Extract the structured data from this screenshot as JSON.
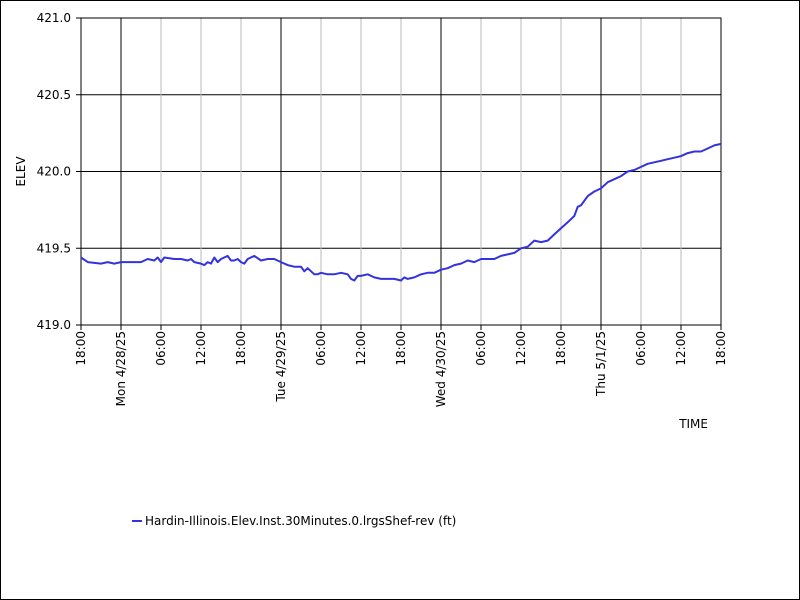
{
  "chart_data": {
    "type": "line",
    "xlabel": "TIME",
    "ylabel": "ELEV",
    "ylim": [
      419.0,
      421.0
    ],
    "y_ticks": [
      "419.0",
      "419.5",
      "420.0",
      "420.5",
      "421.0"
    ],
    "xlim": [
      "2025-04-27T18:00",
      "2025-05-01T18:00"
    ],
    "x_ticks": [
      {
        "t": "2025-04-27T18:00",
        "label": "18:00"
      },
      {
        "t": "2025-04-28T00:00",
        "label": "Mon 4/28/25",
        "major": true
      },
      {
        "t": "2025-04-28T06:00",
        "label": "06:00"
      },
      {
        "t": "2025-04-28T12:00",
        "label": "12:00"
      },
      {
        "t": "2025-04-28T18:00",
        "label": "18:00"
      },
      {
        "t": "2025-04-29T00:00",
        "label": "Tue 4/29/25",
        "major": true
      },
      {
        "t": "2025-04-29T06:00",
        "label": "06:00"
      },
      {
        "t": "2025-04-29T12:00",
        "label": "12:00"
      },
      {
        "t": "2025-04-29T18:00",
        "label": "18:00"
      },
      {
        "t": "2025-04-30T00:00",
        "label": "Wed 4/30/25",
        "major": true
      },
      {
        "t": "2025-04-30T06:00",
        "label": "06:00"
      },
      {
        "t": "2025-04-30T12:00",
        "label": "12:00"
      },
      {
        "t": "2025-04-30T18:00",
        "label": "18:00"
      },
      {
        "t": "2025-05-01T00:00",
        "label": "Thu 5/1/25",
        "major": true
      },
      {
        "t": "2025-05-01T06:00",
        "label": "06:00"
      },
      {
        "t": "2025-05-01T12:00",
        "label": "12:00"
      },
      {
        "t": "2025-05-01T18:00",
        "label": "18:00"
      }
    ],
    "grid": true,
    "legend_position": "bottom-left",
    "series": [
      {
        "name": "Hardin-Illinois.Elev.Inst.30Minutes.0.lrgsShef-rev (ft)",
        "color": "#3333dd",
        "points": [
          [
            "2025-04-27T18:00",
            419.44
          ],
          [
            "2025-04-27T19:00",
            419.41
          ],
          [
            "2025-04-27T21:00",
            419.4
          ],
          [
            "2025-04-27T22:00",
            419.41
          ],
          [
            "2025-04-27T23:00",
            419.4
          ],
          [
            "2025-04-28T00:00",
            419.41
          ],
          [
            "2025-04-28T02:00",
            419.41
          ],
          [
            "2025-04-28T03:00",
            419.41
          ],
          [
            "2025-04-28T04:00",
            419.43
          ],
          [
            "2025-04-28T05:00",
            419.42
          ],
          [
            "2025-04-28T05:30",
            419.44
          ],
          [
            "2025-04-28T06:00",
            419.41
          ],
          [
            "2025-04-28T06:30",
            419.44
          ],
          [
            "2025-04-28T08:00",
            419.43
          ],
          [
            "2025-04-28T09:00",
            419.43
          ],
          [
            "2025-04-28T10:00",
            419.42
          ],
          [
            "2025-04-28T10:30",
            419.43
          ],
          [
            "2025-04-28T11:00",
            419.41
          ],
          [
            "2025-04-28T12:00",
            419.4
          ],
          [
            "2025-04-28T12:30",
            419.39
          ],
          [
            "2025-04-28T13:00",
            419.41
          ],
          [
            "2025-04-28T13:30",
            419.4
          ],
          [
            "2025-04-28T14:00",
            419.44
          ],
          [
            "2025-04-28T14:30",
            419.41
          ],
          [
            "2025-04-28T15:00",
            419.43
          ],
          [
            "2025-04-28T16:00",
            419.45
          ],
          [
            "2025-04-28T16:30",
            419.42
          ],
          [
            "2025-04-28T17:00",
            419.42
          ],
          [
            "2025-04-28T17:30",
            419.43
          ],
          [
            "2025-04-28T18:00",
            419.41
          ],
          [
            "2025-04-28T18:30",
            419.4
          ],
          [
            "2025-04-28T19:00",
            419.43
          ],
          [
            "2025-04-28T20:00",
            419.45
          ],
          [
            "2025-04-28T21:00",
            419.42
          ],
          [
            "2025-04-28T22:00",
            419.43
          ],
          [
            "2025-04-28T23:00",
            419.43
          ],
          [
            "2025-04-29T00:00",
            419.41
          ],
          [
            "2025-04-29T01:00",
            419.39
          ],
          [
            "2025-04-29T02:00",
            419.38
          ],
          [
            "2025-04-29T03:00",
            419.38
          ],
          [
            "2025-04-29T03:30",
            419.35
          ],
          [
            "2025-04-29T04:00",
            419.37
          ],
          [
            "2025-04-29T05:00",
            419.33
          ],
          [
            "2025-04-29T05:30",
            419.33
          ],
          [
            "2025-04-29T06:00",
            419.34
          ],
          [
            "2025-04-29T07:00",
            419.33
          ],
          [
            "2025-04-29T08:00",
            419.33
          ],
          [
            "2025-04-29T09:00",
            419.34
          ],
          [
            "2025-04-29T10:00",
            419.33
          ],
          [
            "2025-04-29T10:30",
            419.3
          ],
          [
            "2025-04-29T11:00",
            419.29
          ],
          [
            "2025-04-29T11:30",
            419.32
          ],
          [
            "2025-04-29T12:00",
            419.32
          ],
          [
            "2025-04-29T13:00",
            419.33
          ],
          [
            "2025-04-29T14:00",
            419.31
          ],
          [
            "2025-04-29T15:00",
            419.3
          ],
          [
            "2025-04-29T16:00",
            419.3
          ],
          [
            "2025-04-29T17:00",
            419.3
          ],
          [
            "2025-04-29T18:00",
            419.29
          ],
          [
            "2025-04-29T18:30",
            419.31
          ],
          [
            "2025-04-29T19:00",
            419.3
          ],
          [
            "2025-04-29T20:00",
            419.31
          ],
          [
            "2025-04-29T21:00",
            419.33
          ],
          [
            "2025-04-29T22:00",
            419.34
          ],
          [
            "2025-04-29T23:00",
            419.34
          ],
          [
            "2025-04-30T00:00",
            419.36
          ],
          [
            "2025-04-30T01:00",
            419.37
          ],
          [
            "2025-04-30T02:00",
            419.39
          ],
          [
            "2025-04-30T03:00",
            419.4
          ],
          [
            "2025-04-30T04:00",
            419.42
          ],
          [
            "2025-04-30T05:00",
            419.41
          ],
          [
            "2025-04-30T06:00",
            419.43
          ],
          [
            "2025-04-30T07:00",
            419.43
          ],
          [
            "2025-04-30T08:00",
            419.43
          ],
          [
            "2025-04-30T09:00",
            419.45
          ],
          [
            "2025-04-30T10:00",
            419.46
          ],
          [
            "2025-04-30T11:00",
            419.47
          ],
          [
            "2025-04-30T12:00",
            419.5
          ],
          [
            "2025-04-30T13:00",
            419.51
          ],
          [
            "2025-04-30T14:00",
            419.55
          ],
          [
            "2025-04-30T15:00",
            419.54
          ],
          [
            "2025-04-30T16:00",
            419.55
          ],
          [
            "2025-04-30T17:00",
            419.59
          ],
          [
            "2025-04-30T18:00",
            419.63
          ],
          [
            "2025-04-30T19:00",
            419.67
          ],
          [
            "2025-04-30T20:00",
            419.71
          ],
          [
            "2025-04-30T20:30",
            419.77
          ],
          [
            "2025-04-30T21:00",
            419.78
          ],
          [
            "2025-04-30T22:00",
            419.84
          ],
          [
            "2025-04-30T23:00",
            419.87
          ],
          [
            "2025-05-01T00:00",
            419.89
          ],
          [
            "2025-05-01T01:00",
            419.93
          ],
          [
            "2025-05-01T02:00",
            419.95
          ],
          [
            "2025-05-01T03:00",
            419.97
          ],
          [
            "2025-05-01T04:00",
            420.0
          ],
          [
            "2025-05-01T05:00",
            420.01
          ],
          [
            "2025-05-01T06:00",
            420.03
          ],
          [
            "2025-05-01T07:00",
            420.05
          ],
          [
            "2025-05-01T08:00",
            420.06
          ],
          [
            "2025-05-01T09:00",
            420.07
          ],
          [
            "2025-05-01T10:00",
            420.08
          ],
          [
            "2025-05-01T11:00",
            420.09
          ],
          [
            "2025-05-01T12:00",
            420.1
          ],
          [
            "2025-05-01T13:00",
            420.12
          ],
          [
            "2025-05-01T14:00",
            420.13
          ],
          [
            "2025-05-01T15:00",
            420.13
          ],
          [
            "2025-05-01T16:00",
            420.15
          ],
          [
            "2025-05-01T17:00",
            420.17
          ],
          [
            "2025-05-01T18:00",
            420.18
          ]
        ]
      }
    ]
  }
}
